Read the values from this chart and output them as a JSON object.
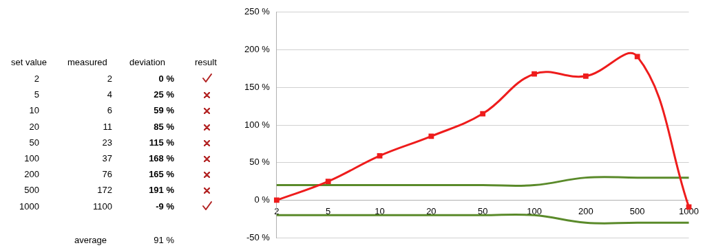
{
  "chart_data": [
    {
      "type": "other",
      "xlabel": "set value",
      "categories": [
        "2",
        "5",
        "10",
        "20",
        "50",
        "100",
        "200",
        "500",
        "1000"
      ],
      "series": [
        {
          "name": "measured",
          "values": [
            2,
            4,
            6,
            11,
            23,
            37,
            76,
            172,
            1100
          ],
          "value_labels": [
            "2",
            "4",
            "6",
            "11",
            "23",
            "37",
            "76",
            "172",
            "1100"
          ]
        },
        {
          "name": "deviation",
          "values": [
            0,
            25,
            59,
            85,
            115,
            168,
            165,
            191,
            -9
          ],
          "value_labels": [
            "0 %",
            "25 %",
            "59 %",
            "85 %",
            "115 %",
            "168 %",
            "165 %",
            "191 %",
            "-9 %"
          ]
        }
      ],
      "annotations": [
        "result",
        "average",
        "91 %"
      ]
    },
    {
      "type": "line",
      "categories": [
        "2",
        "5",
        "10",
        "20",
        "50",
        "100",
        "200",
        "500",
        "1000"
      ],
      "ylim": [
        -50,
        250
      ],
      "yticks": [
        {
          "value": -50,
          "label": "-50 %"
        },
        {
          "value": 0,
          "label": "0 %"
        },
        {
          "value": 50,
          "label": "50 %"
        },
        {
          "value": 100,
          "label": "100 %"
        },
        {
          "value": 150,
          "label": "150 %"
        },
        {
          "value": 200,
          "label": "200 %"
        },
        {
          "value": 250,
          "label": "250 %"
        }
      ],
      "grid": "y",
      "legend": false,
      "marker": "square",
      "series": [
        {
          "color": "#ee1c1c",
          "values": [
            0,
            25,
            59,
            85,
            115,
            168,
            165,
            191,
            -9
          ]
        },
        {
          "color": "#5a8a2a",
          "marker": "none",
          "values": [
            20,
            20,
            20,
            20,
            20,
            20,
            30,
            30,
            30
          ]
        },
        {
          "color": "#5a8a2a",
          "marker": "none",
          "values": [
            -20,
            -20,
            -20,
            -20,
            -20,
            -20,
            -30,
            -30,
            -30
          ]
        }
      ]
    }
  ]
}
